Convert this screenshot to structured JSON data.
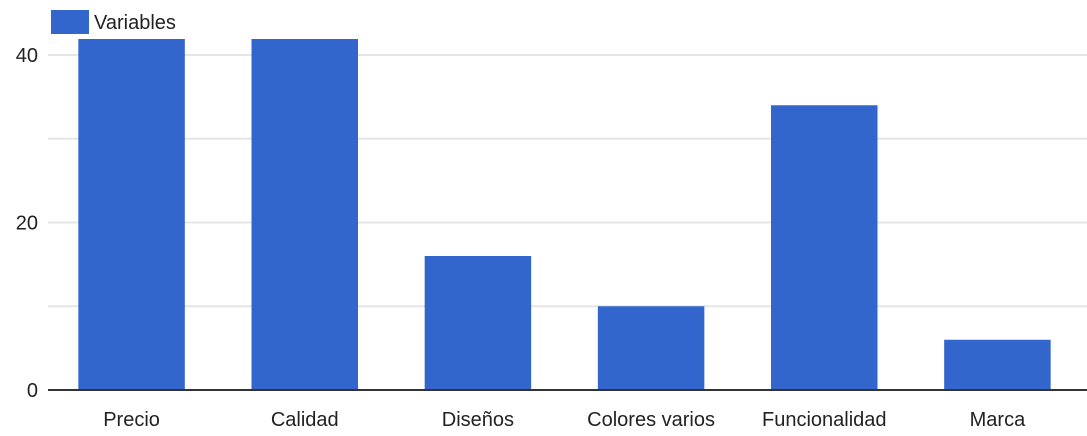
{
  "chart_data": {
    "type": "bar",
    "categories": [
      "Precio",
      "Calidad",
      "Diseños",
      "Colores varios",
      "Funcionalidad",
      "Marca"
    ],
    "series": [
      {
        "name": "Variables",
        "color": "#3366cc",
        "values": [
          42,
          42,
          16,
          10,
          34,
          6
        ]
      }
    ],
    "y_ticks": [
      "0",
      "20",
      "40"
    ],
    "ylim": [
      0,
      40
    ],
    "grid": true,
    "legend_position": "top-left",
    "colors": {
      "bar": "#3366cc",
      "gridline": "#e5e5e5",
      "baseline": "#333333",
      "text": "#222222"
    }
  }
}
